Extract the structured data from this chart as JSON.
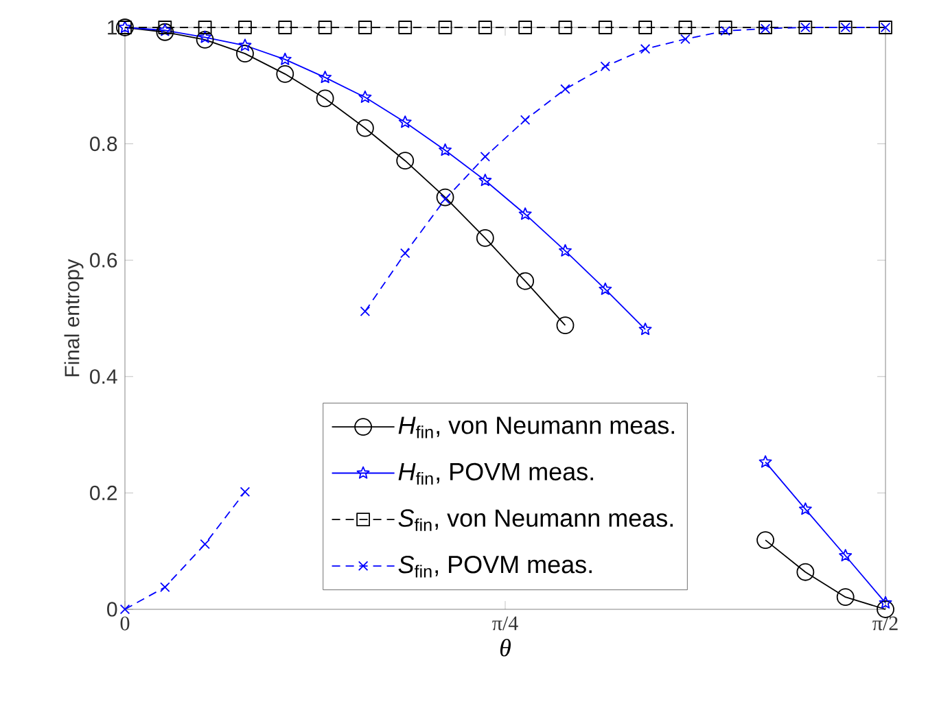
{
  "chart_data": {
    "type": "line",
    "xlabel": "θ",
    "ylabel": "Final entropy",
    "x": [
      0,
      0.0827,
      0.1653,
      0.248,
      0.3307,
      0.4134,
      0.496,
      0.5787,
      0.6614,
      0.744,
      0.8267,
      0.9094,
      0.9921,
      1.0747,
      1.1574,
      1.2401,
      1.3228,
      1.4054,
      1.4881,
      1.5708
    ],
    "series": [
      {
        "name": "*H*$_{fin}$, von Neumann meas.",
        "color": "#000000",
        "marker": "circle",
        "line_style": "solid",
        "values": [
          1.0,
          0.992,
          0.979,
          0.955,
          0.92,
          0.878,
          0.827,
          0.771,
          0.708,
          0.638,
          0.564,
          0.488,
          null,
          null,
          null,
          null,
          0.119,
          0.064,
          0.021,
          0.0
        ]
      },
      {
        "name": "*H*$_{fin}$, POVM meas.",
        "color": "#0000ff",
        "marker": "star",
        "line_style": "solid",
        "values": [
          1.0,
          0.995,
          0.983,
          0.969,
          0.945,
          0.914,
          0.88,
          0.837,
          0.789,
          0.737,
          0.679,
          0.616,
          0.55,
          0.481,
          null,
          null,
          0.253,
          0.172,
          0.092,
          0.011
        ]
      },
      {
        "name": "*S*$_{fin}$, von Neumann meas.",
        "color": "#000000",
        "marker": "square",
        "line_style": "dashed",
        "values": [
          1,
          1,
          1,
          1,
          1,
          1,
          1,
          1,
          1,
          1,
          1,
          1,
          1,
          1,
          1,
          1,
          1,
          1,
          1,
          1
        ]
      },
      {
        "name": "*S*$_{fin}$, POVM meas.",
        "color": "#0000ff",
        "marker": "cross",
        "line_style": "dashed",
        "values": [
          0.0,
          0.038,
          0.112,
          0.202,
          null,
          null,
          0.512,
          0.612,
          0.705,
          0.778,
          0.841,
          0.894,
          0.933,
          0.963,
          0.98,
          0.994,
          0.998,
          1.0,
          1.0,
          1.0
        ]
      }
    ],
    "xlim": [
      0,
      1.5708
    ],
    "ylim": [
      0,
      1
    ],
    "xticks": [
      0,
      {
        "value": 0.7854,
        "label": "π/4"
      },
      {
        "value": 1.5708,
        "label": "π/2"
      }
    ],
    "yticks": [
      0,
      0.2,
      0.4,
      0.6,
      0.8,
      1
    ],
    "grid": false,
    "legend": "bottom"
  }
}
